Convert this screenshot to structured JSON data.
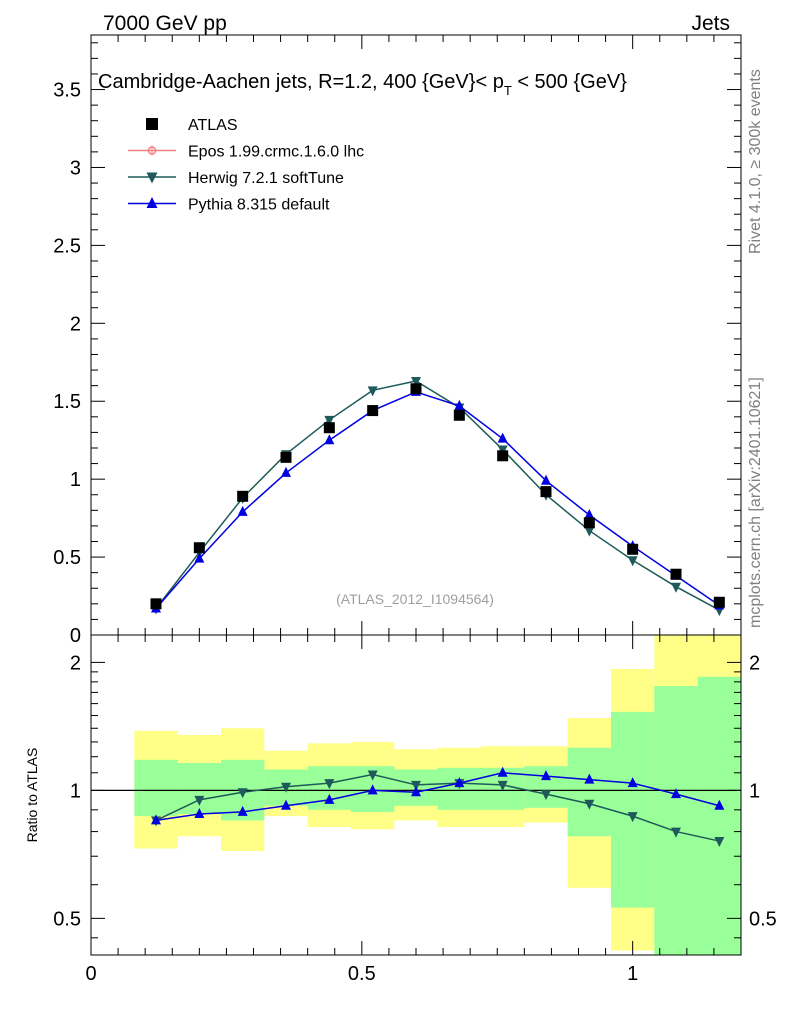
{
  "header": {
    "left": "7000 GeV pp",
    "right": "Jets"
  },
  "side": {
    "rivet": "Rivet 4.1.0, ≥ 300k events",
    "mcplots": "mcplots.cern.ch [arXiv:2401.10621]"
  },
  "chart_data": [
    {
      "type": "line",
      "title": "Cambridge-Aachen jets, R=1.2,  400 {GeV}< p",
      "title_sub": "T",
      "title_tail": " < 500 {GeV}",
      "watermark": "(ATLAS_2012_I1094564)",
      "xlim": [
        0,
        1.2
      ],
      "ylim": [
        0,
        3.85
      ],
      "yticks": [
        0.5,
        1,
        1.5,
        2,
        2.5,
        3,
        3.5
      ],
      "ytick_labels": [
        "0.5",
        "1",
        "1.5",
        "2",
        "2.5",
        "3",
        "3.5"
      ],
      "y0_label": "0",
      "x": [
        0.12,
        0.2,
        0.28,
        0.36,
        0.44,
        0.52,
        0.6,
        0.68,
        0.76,
        0.84,
        0.92,
        1.0,
        1.08,
        1.16
      ],
      "legend": [
        {
          "name": "ATLAS",
          "color": "#000000",
          "marker": "square"
        },
        {
          "name": "Epos 1.99.crmc.1.6.0 lhc",
          "color": "#f08080",
          "marker": "open-circle"
        },
        {
          "name": "Herwig 7.2.1 softTune",
          "color": "#1e5a5a",
          "marker": "triangle-down"
        },
        {
          "name": "Pythia 8.315 default",
          "color": "#0000e0",
          "marker": "triangle-up"
        }
      ],
      "series": [
        {
          "name": "ATLAS",
          "values": [
            0.2,
            0.56,
            0.89,
            1.14,
            1.33,
            1.44,
            1.58,
            1.41,
            1.15,
            0.92,
            0.72,
            0.55,
            0.39,
            0.21
          ]
        },
        {
          "name": "Herwig 7.2.1 softTune",
          "values": [
            0.17,
            0.53,
            0.88,
            1.16,
            1.38,
            1.57,
            1.63,
            1.46,
            1.19,
            0.9,
            0.67,
            0.48,
            0.31,
            0.16
          ]
        },
        {
          "name": "Pythia 8.315 default",
          "values": [
            0.17,
            0.49,
            0.79,
            1.04,
            1.25,
            1.44,
            1.56,
            1.47,
            1.26,
            0.99,
            0.77,
            0.57,
            0.38,
            0.19
          ]
        }
      ]
    },
    {
      "type": "line",
      "ylabel": "Ratio to ATLAS",
      "xlim": [
        0,
        1.2
      ],
      "ylim": [
        0.41,
        2.32
      ],
      "yscale": "log",
      "yticks": [
        0.5,
        1,
        2
      ],
      "ytick_labels": [
        "0.5",
        "1",
        "2"
      ],
      "xticks": [
        0,
        0.5,
        1
      ],
      "xtick_labels": [
        "0",
        "0.5",
        "1"
      ],
      "band_edges": [
        0.08,
        0.16,
        0.24,
        0.32,
        0.4,
        0.48,
        0.56,
        0.64,
        0.72,
        0.8,
        0.88,
        0.96,
        1.04,
        1.12,
        1.2
      ],
      "band_yellow": [
        [
          0.73,
          1.38
        ],
        [
          0.78,
          1.35
        ],
        [
          0.72,
          1.4
        ],
        [
          0.87,
          1.24
        ],
        [
          0.82,
          1.29
        ],
        [
          0.81,
          1.3
        ],
        [
          0.85,
          1.25
        ],
        [
          0.82,
          1.26
        ],
        [
          0.82,
          1.27
        ],
        [
          0.84,
          1.27
        ],
        [
          0.59,
          1.48
        ],
        [
          0.42,
          1.93
        ],
        [
          0.4,
          2.4
        ],
        [
          0.4,
          2.4
        ]
      ],
      "band_green": [
        [
          0.87,
          1.18
        ],
        [
          0.88,
          1.16
        ],
        [
          0.85,
          1.18
        ],
        [
          0.92,
          1.12
        ],
        [
          0.9,
          1.14
        ],
        [
          0.89,
          1.14
        ],
        [
          0.92,
          1.12
        ],
        [
          0.9,
          1.13
        ],
        [
          0.9,
          1.13
        ],
        [
          0.91,
          1.14
        ],
        [
          0.78,
          1.26
        ],
        [
          0.53,
          1.53
        ],
        [
          0.4,
          1.76
        ],
        [
          0.4,
          1.85
        ]
      ],
      "series": [
        {
          "name": "Herwig 7.2.1 softTune",
          "values": [
            0.85,
            0.95,
            0.99,
            1.02,
            1.04,
            1.09,
            1.03,
            1.04,
            1.03,
            0.98,
            0.93,
            0.87,
            0.8,
            0.76
          ]
        },
        {
          "name": "Pythia 8.315 default",
          "values": [
            0.85,
            0.88,
            0.89,
            0.92,
            0.95,
            1.0,
            0.99,
            1.04,
            1.1,
            1.08,
            1.06,
            1.04,
            0.98,
            0.92
          ]
        }
      ]
    }
  ]
}
